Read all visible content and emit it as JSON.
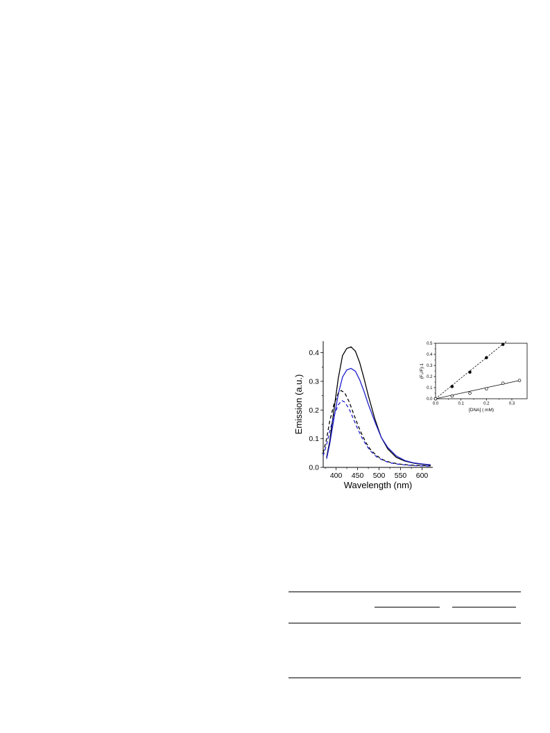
{
  "chart_data": [
    {
      "type": "line",
      "xlabel": "Wavelength (nm)",
      "ylabel": "Emission (a.u.)",
      "xlim": [
        370,
        625
      ],
      "ylim": [
        0,
        0.44
      ],
      "xticks": [
        400,
        450,
        500,
        550,
        600
      ],
      "yticks": [
        0.0,
        0.1,
        0.2,
        0.3,
        0.4
      ],
      "xtick_labels": [
        "400",
        "450",
        "500",
        "550",
        "600"
      ],
      "ytick_labels": [
        "0.0",
        "0.1",
        "0.2",
        "0.3",
        "0.4"
      ],
      "series": [
        {
          "color": "#000000",
          "style": "solid",
          "x": [
            378,
            385,
            395,
            405,
            415,
            425,
            435,
            445,
            455,
            465,
            475,
            490,
            505,
            520,
            540,
            560,
            580,
            600,
            620
          ],
          "y": [
            0.035,
            0.09,
            0.2,
            0.31,
            0.39,
            0.415,
            0.42,
            0.405,
            0.365,
            0.31,
            0.25,
            0.17,
            0.105,
            0.065,
            0.035,
            0.022,
            0.015,
            0.011,
            0.008
          ]
        },
        {
          "color": "#1f1fcc",
          "style": "solid",
          "x": [
            378,
            385,
            395,
            405,
            415,
            425,
            435,
            445,
            455,
            465,
            475,
            490,
            505,
            520,
            540,
            560,
            580,
            600,
            620
          ],
          "y": [
            0.03,
            0.08,
            0.17,
            0.255,
            0.315,
            0.34,
            0.345,
            0.335,
            0.305,
            0.265,
            0.22,
            0.16,
            0.105,
            0.07,
            0.04,
            0.024,
            0.016,
            0.012,
            0.009
          ]
        },
        {
          "color": "#000000",
          "style": "dashed",
          "x": [
            370,
            378,
            385,
            395,
            405,
            412,
            420,
            430,
            440,
            450,
            460,
            470,
            480,
            495,
            510,
            525,
            545,
            565,
            585,
            605,
            620
          ],
          "y": [
            0.05,
            0.1,
            0.16,
            0.22,
            0.258,
            0.268,
            0.26,
            0.23,
            0.19,
            0.15,
            0.115,
            0.085,
            0.062,
            0.04,
            0.026,
            0.018,
            0.012,
            0.009,
            0.007,
            0.006,
            0.005
          ]
        },
        {
          "color": "#1f1fcc",
          "style": "dashed",
          "x": [
            370,
            378,
            385,
            395,
            405,
            413,
            420,
            430,
            440,
            450,
            460,
            470,
            480,
            495,
            510,
            525,
            545,
            565,
            585,
            605,
            620
          ],
          "y": [
            0.04,
            0.08,
            0.125,
            0.18,
            0.218,
            0.233,
            0.228,
            0.205,
            0.17,
            0.135,
            0.104,
            0.078,
            0.057,
            0.036,
            0.024,
            0.016,
            0.011,
            0.008,
            0.006,
            0.005,
            0.004
          ]
        }
      ]
    },
    {
      "type": "scatter",
      "xlabel": "[DNA] ( mM)",
      "ylabel": "(F₀/F)-1",
      "xlim": [
        0,
        0.36
      ],
      "ylim": [
        0,
        0.5
      ],
      "xticks": [
        0.0,
        0.1,
        0.2,
        0.3
      ],
      "yticks": [
        0.0,
        0.1,
        0.2,
        0.3,
        0.4,
        0.5
      ],
      "xtick_labels": [
        "0.0",
        "0.1",
        "0.2",
        "0.3"
      ],
      "ytick_labels": [
        "0.0",
        "0.1",
        "0.2",
        "0.3",
        "0.4",
        "0.5"
      ],
      "series": [
        {
          "marker": "filled-circle",
          "fit": "dashed",
          "x": [
            0.0,
            0.065,
            0.135,
            0.2,
            0.265
          ],
          "y": [
            0.0,
            0.11,
            0.24,
            0.37,
            0.49
          ],
          "fit_x": [
            0.0,
            0.28
          ],
          "fit_y": [
            0.0,
            0.52
          ]
        },
        {
          "marker": "open-circle",
          "fit": "solid",
          "x": [
            0.0,
            0.065,
            0.135,
            0.2,
            0.265,
            0.33
          ],
          "y": [
            0.0,
            0.025,
            0.05,
            0.09,
            0.14,
            0.165
          ],
          "fit_x": [
            0.0,
            0.33
          ],
          "fit_y": [
            0.0,
            0.165
          ]
        }
      ]
    }
  ]
}
